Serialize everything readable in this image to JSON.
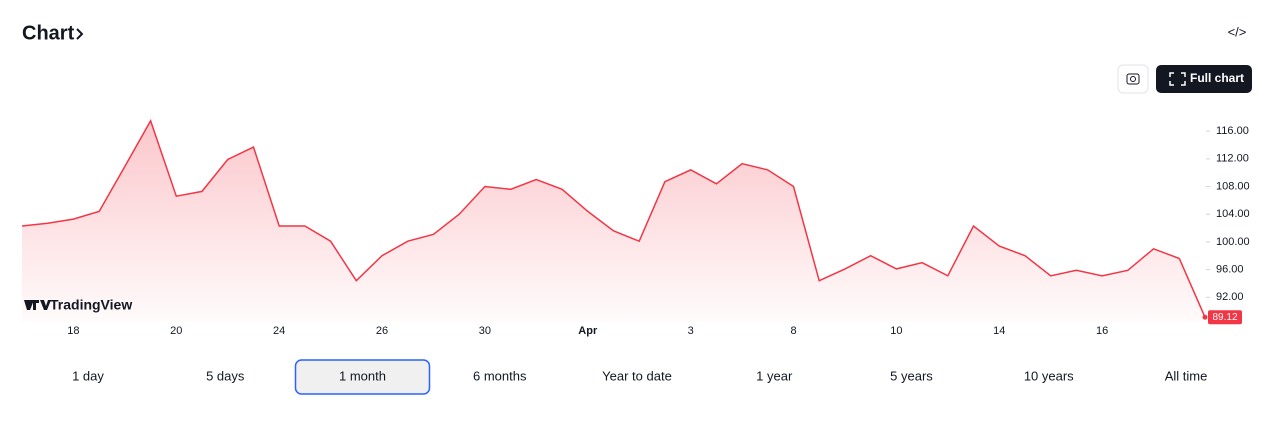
{
  "ui": {
    "title": "Chart",
    "embed_icon": "</>",
    "full_chart": "Full chart",
    "brand": "TradingView",
    "ranges": [
      "1 day",
      "5 days",
      "1 month",
      "6 months",
      "Year to date",
      "1 year",
      "5 years",
      "10 years",
      "All time"
    ],
    "selected_range": 2
  },
  "chart_data": {
    "type": "area",
    "color": "#f23645",
    "categories": [
      null,
      null,
      "18",
      null,
      null,
      null,
      "20",
      null,
      null,
      null,
      "24",
      null,
      null,
      null,
      "26",
      null,
      null,
      null,
      "30",
      null,
      null,
      null,
      "Apr",
      null,
      null,
      null,
      "3",
      null,
      null,
      null,
      "8",
      null,
      null,
      null,
      "10",
      null,
      null,
      null,
      "14",
      null,
      null,
      null,
      "16",
      null,
      null,
      null,
      null
    ],
    "values": [
      102.3,
      102.7,
      103.3,
      104.4,
      110.9,
      117.5,
      106.6,
      107.3,
      111.9,
      113.7,
      102.3,
      102.3,
      100.1,
      94.4,
      98.0,
      100.1,
      101.1,
      104.0,
      108.0,
      107.6,
      109.0,
      107.6,
      104.4,
      101.6,
      100.1,
      108.7,
      110.4,
      108.4,
      111.3,
      110.4,
      108.0,
      94.4,
      96.1,
      98.0,
      96.1,
      97.0,
      95.1,
      102.3,
      99.4,
      98.0,
      95.1,
      95.9,
      95.1,
      95.9,
      99.0,
      97.6,
      89.12
    ],
    "ylim": [
      88.5,
      120.5
    ],
    "yticks": [
      {
        "value": 92,
        "label": "92.00"
      },
      {
        "value": 96,
        "label": "96.00"
      },
      {
        "value": 100,
        "label": "100.00"
      },
      {
        "value": 104,
        "label": "104.00"
      },
      {
        "value": 108,
        "label": "108.00"
      },
      {
        "value": 112,
        "label": "112.00"
      },
      {
        "value": 116,
        "label": "116.00"
      }
    ]
  }
}
